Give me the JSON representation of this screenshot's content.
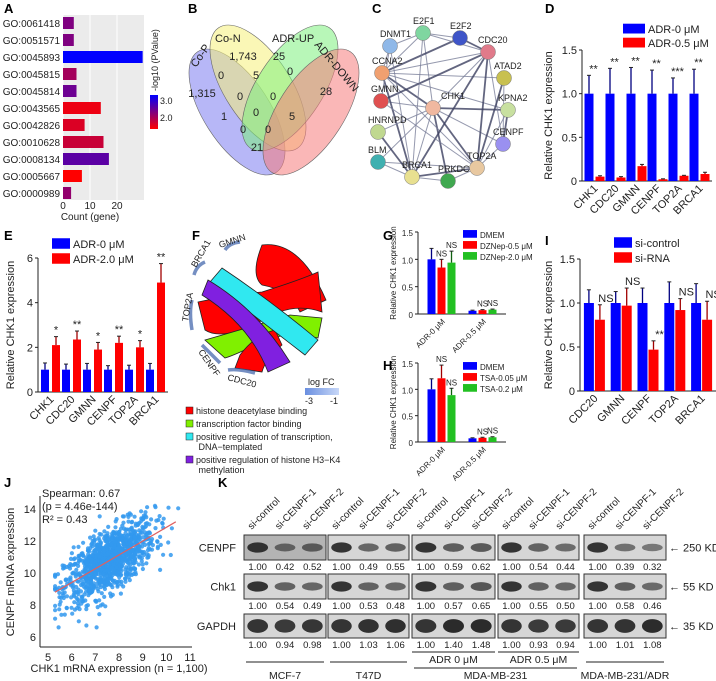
{
  "panel_labels": [
    "A",
    "B",
    "C",
    "D",
    "E",
    "F",
    "G",
    "H",
    "I",
    "J",
    "K"
  ],
  "chart_data": [
    {
      "panel": "A",
      "type": "bar",
      "orientation": "horizontal",
      "categories": [
        "GO:0061418",
        "GO:0051571",
        "GO:0045893",
        "GO:0045815",
        "GO:0045814",
        "GO:0043565",
        "GO:0042826",
        "GO:0010628",
        "GO:0008134",
        "GO:0005667",
        "GO:0000989"
      ],
      "values": [
        4,
        4,
        30,
        5,
        5,
        14,
        8,
        15,
        17,
        7,
        3
      ],
      "neg_log10_pvalue": [
        2.6,
        2.6,
        3.3,
        2.4,
        2.7,
        2.0,
        2.1,
        2.2,
        2.8,
        1.9,
        2.5
      ],
      "xlabel": "Count (gene)",
      "xticks": [
        "0",
        "10",
        "20"
      ],
      "xlim": [
        0,
        30
      ],
      "colorbar": {
        "title": "-log10 (PValue)",
        "ticks": [
          "3.0",
          "2.0"
        ],
        "low_color": "#ff0000",
        "high_color": "#0000ff"
      },
      "grid": true,
      "background": "#ebebeb"
    },
    {
      "panel": "B",
      "type": "venn",
      "sets": [
        {
          "name": "Co-P",
          "color": "#7b7bf0"
        },
        {
          "name": "Co-N",
          "color": "#f5f07a"
        },
        {
          "name": "ADR-UP",
          "color": "#7ef07e"
        },
        {
          "name": "ADR-DOWN",
          "color": "#f57b7b"
        }
      ],
      "counts": [
        "1,743",
        "25",
        "1,315",
        "0",
        "5",
        "0",
        "28",
        "0",
        "0",
        "1",
        "0",
        "5",
        "0",
        "0",
        "21"
      ]
    },
    {
      "panel": "C",
      "type": "network",
      "nodes": [
        {
          "id": "E2F1",
          "color": "#7fd6a0"
        },
        {
          "id": "E2F2",
          "color": "#3f55c8"
        },
        {
          "id": "DNMT1",
          "color": "#8fb8e8"
        },
        {
          "id": "CDC20",
          "color": "#e07a8a"
        },
        {
          "id": "CCNA2",
          "color": "#f0a070"
        },
        {
          "id": "ATAD2",
          "color": "#c8c050"
        },
        {
          "id": "GMNN",
          "color": "#e05050"
        },
        {
          "id": "CHK1",
          "color": "#f0b8a0"
        },
        {
          "id": "KPNA2",
          "color": "#c8e0a0"
        },
        {
          "id": "HNRNPD",
          "color": "#c0d890"
        },
        {
          "id": "CENPF",
          "color": "#9a90f0"
        },
        {
          "id": "BLM",
          "color": "#40b0b0"
        },
        {
          "id": "TOP2A",
          "color": "#e8c8a0"
        },
        {
          "id": "BRCA1",
          "color": "#e8e090"
        },
        {
          "id": "PRKDC",
          "color": "#40a850"
        }
      ],
      "edges": [
        [
          "CHK1",
          "CCNA2"
        ],
        [
          "CHK1",
          "CDC20"
        ],
        [
          "CHK1",
          "CENPF"
        ],
        [
          "CHK1",
          "TOP2A"
        ],
        [
          "CHK1",
          "BRCA1"
        ],
        [
          "CHK1",
          "BLM"
        ],
        [
          "CHK1",
          "PRKDC"
        ],
        [
          "CHK1",
          "E2F1"
        ],
        [
          "CHK1",
          "GMNN"
        ],
        [
          "CHK1",
          "KPNA2"
        ],
        [
          "CCNA2",
          "CDC20"
        ],
        [
          "CCNA2",
          "E2F1"
        ],
        [
          "CCNA2",
          "E2F2"
        ],
        [
          "CCNA2",
          "DNMT1"
        ],
        [
          "CCNA2",
          "TOP2A"
        ],
        [
          "CCNA2",
          "BRCA1"
        ],
        [
          "CCNA2",
          "ATAD2"
        ],
        [
          "CCNA2",
          "KPNA2"
        ],
        [
          "CDC20",
          "TOP2A"
        ],
        [
          "CDC20",
          "CENPF"
        ],
        [
          "CDC20",
          "E2F1"
        ],
        [
          "CDC20",
          "BRCA1"
        ],
        [
          "E2F1",
          "E2F2"
        ],
        [
          "E2F1",
          "DNMT1"
        ],
        [
          "E2F2",
          "CDC20"
        ],
        [
          "DNMT1",
          "GMNN"
        ],
        [
          "GMNN",
          "TOP2A"
        ],
        [
          "GMNN",
          "CDC20"
        ],
        [
          "BRCA1",
          "BLM"
        ],
        [
          "BRCA1",
          "PRKDC"
        ],
        [
          "BRCA1",
          "TOP2A"
        ],
        [
          "TOP2A",
          "CENPF"
        ],
        [
          "TOP2A",
          "KPNA2"
        ],
        [
          "ATAD2",
          "TOP2A"
        ],
        [
          "ATAD2",
          "CENPF"
        ],
        [
          "BLM",
          "TOP2A"
        ],
        [
          "HNRNPD",
          "BRCA1"
        ],
        [
          "HNRNPD",
          "CHK1"
        ],
        [
          "PRKDC",
          "TOP2A"
        ],
        [
          "KPNA2",
          "CENPF"
        ],
        [
          "E2F1",
          "BRCA1"
        ],
        [
          "DNMT1",
          "BRCA1"
        ]
      ]
    },
    {
      "panel": "D",
      "type": "bar",
      "categories": [
        "CHK1",
        "CDC20",
        "GMNN",
        "CENPF",
        "TOP2A",
        "BRCA1"
      ],
      "series": [
        {
          "name": "ADR-0 μM",
          "color": "#0000ff",
          "values": [
            1,
            1,
            1,
            1,
            1,
            1
          ],
          "errors": [
            0.21,
            0.29,
            0.3,
            0.27,
            0.18,
            0.28
          ]
        },
        {
          "name": "ADR-0.5 μM",
          "color": "#ff0000",
          "values": [
            0.05,
            0.04,
            0.17,
            0.02,
            0.06,
            0.08
          ],
          "errors": [
            0.01,
            0.01,
            0.02,
            0.005,
            0.005,
            0.02
          ]
        }
      ],
      "significance": [
        "**",
        "**",
        "**",
        "**",
        "***",
        "**"
      ],
      "ylabel": "Relative CHK1 expression",
      "ylim": [
        0,
        1.5
      ],
      "yticks": [
        "0",
        "0.5",
        "1.0",
        "1.5"
      ],
      "legend": "top-right"
    },
    {
      "panel": "E",
      "type": "bar",
      "categories": [
        "CHK1",
        "CDC20",
        "GMNN",
        "CENPF",
        "TOP2A",
        "BRCA1"
      ],
      "series": [
        {
          "name": "ADR-0 μM",
          "color": "#0000ff",
          "values": [
            1,
            1,
            1,
            1,
            1,
            1
          ],
          "errors": [
            0.3,
            0.25,
            0.28,
            0.18,
            0.2,
            0.28
          ]
        },
        {
          "name": "ADR-2.0 μM",
          "color": "#ff0000",
          "values": [
            2.1,
            2.35,
            1.9,
            2.2,
            2.0,
            4.9
          ],
          "errors": [
            0.38,
            0.38,
            0.32,
            0.3,
            0.3,
            0.85
          ]
        }
      ],
      "significance": [
        "*",
        "**",
        "*",
        "**",
        "*",
        "**"
      ],
      "ylabel": "Relative CHK1 expression",
      "ylim": [
        0,
        6
      ],
      "yticks": [
        "0",
        "2",
        "4",
        "6"
      ],
      "legend": "top-left"
    },
    {
      "panel": "F",
      "type": "chord",
      "genes": [
        "GMNN",
        "BRCA1",
        "TOP2A",
        "CENPF",
        "CDC20"
      ],
      "terms": [
        {
          "name": "histone deacetylase binding",
          "color": "#ff0000"
        },
        {
          "name": "transcription factor binding",
          "color": "#80f000"
        },
        {
          "name": "positive regulation of transcription, DNA−templated",
          "color": "#30e8f0"
        },
        {
          "name": "positive regulation of histone H3−K4 methylation",
          "color": "#8020e0"
        }
      ],
      "colorbar": {
        "title": "log FC",
        "ticks": [
          "-3",
          "-1"
        ]
      }
    },
    {
      "panel": "G",
      "type": "bar",
      "categories": [
        "ADR-0 μM",
        "ADR-0.5 μM"
      ],
      "series": [
        {
          "name": "DMEM",
          "color": "#0000ff",
          "values": [
            1.0,
            0.06
          ],
          "errors": [
            0.2,
            0.01
          ]
        },
        {
          "name": "DZNep-0.5 μM",
          "color": "#ff0000",
          "values": [
            0.85,
            0.07
          ],
          "errors": [
            0.15,
            0.01
          ]
        },
        {
          "name": "DZNep-2.0 μM",
          "color": "#22c022",
          "values": [
            0.94,
            0.08
          ],
          "errors": [
            0.21,
            0.01
          ]
        }
      ],
      "significance": [
        [
          "",
          "NS",
          "NS"
        ],
        [
          "",
          "NS",
          "NS"
        ]
      ],
      "ylabel": "Relative CHK1 expression",
      "ylim": [
        0,
        1.5
      ],
      "yticks": [
        "0",
        "0.5",
        "1.0",
        "1.5"
      ],
      "legend": "top-right"
    },
    {
      "panel": "H",
      "type": "bar",
      "categories": [
        "ADR-0 μM",
        "ADR-0.5 μM"
      ],
      "series": [
        {
          "name": "DMEM",
          "color": "#0000ff",
          "values": [
            1.0,
            0.07
          ],
          "errors": [
            0.2,
            0.01
          ]
        },
        {
          "name": "TSA-0.05 μM",
          "color": "#ff0000",
          "values": [
            1.21,
            0.08
          ],
          "errors": [
            0.25,
            0.01
          ]
        },
        {
          "name": "TSA-0.2 μM",
          "color": "#22c022",
          "values": [
            0.89,
            0.09
          ],
          "errors": [
            0.13,
            0.01
          ]
        }
      ],
      "significance": [
        [
          "",
          "NS",
          "NS"
        ],
        [
          "",
          "NS",
          "NS"
        ]
      ],
      "ylabel": "Relative CHK1 expression",
      "ylim": [
        0,
        1.5
      ],
      "yticks": [
        "0",
        "0.5",
        "1.0",
        "1.5"
      ],
      "legend": "top-right"
    },
    {
      "panel": "I",
      "type": "bar",
      "categories": [
        "CDC20",
        "GMNN",
        "CENPF",
        "TOP2A",
        "BRCA1"
      ],
      "series": [
        {
          "name": "si-control",
          "color": "#0000ff",
          "values": [
            1,
            1,
            1,
            1,
            1
          ],
          "errors": [
            0.15,
            0.13,
            0.17,
            0.24,
            0.22
          ]
        },
        {
          "name": "si-RNA",
          "color": "#ff0000",
          "values": [
            0.81,
            0.97,
            0.47,
            0.92,
            0.81
          ],
          "errors": [
            0.17,
            0.2,
            0.1,
            0.13,
            0.21
          ]
        }
      ],
      "significance": [
        "NS",
        "NS",
        "**",
        "NS",
        "NS"
      ],
      "ylabel": "Relative CHK1 expression",
      "ylim": [
        0,
        1.5
      ],
      "yticks": [
        "0",
        "0.5",
        "1.0",
        "1.5"
      ],
      "legend": "top"
    },
    {
      "panel": "J",
      "type": "scatter",
      "xlabel": "CHK1 mRNA expression (n = 1,100)",
      "ylabel": "CENPF mRNA expression",
      "xlim": [
        5,
        11
      ],
      "ylim": [
        6,
        14.8
      ],
      "xticks": [
        "5",
        "6",
        "7",
        "8",
        "9",
        "10",
        "11"
      ],
      "yticks": [
        "6",
        "8",
        "10",
        "12",
        "14"
      ],
      "n": 1100,
      "point_color": "#3399ee",
      "line_color": "#e06060",
      "fit_line": [
        [
          5.3,
          8.8
        ],
        [
          10.4,
          13.2
        ]
      ],
      "annotations": [
        "Spearman: 0.67",
        "(p = 4.46e-144)",
        "R² = 0.43"
      ]
    },
    {
      "panel": "K",
      "type": "table",
      "subtype": "western-blot",
      "lanes": [
        "si-control",
        "si-CENPF-1",
        "si-CENPF-2"
      ],
      "rows": [
        {
          "protein": "CENPF",
          "marker": "← 250 KD"
        },
        {
          "protein": "Chk1",
          "marker": "← 55 KD"
        },
        {
          "protein": "GAPDH",
          "marker": "← 35 KD"
        }
      ],
      "blocks": [
        {
          "cell_line": "MCF-7",
          "condition": "",
          "values": [
            [
              "1.00",
              "0.42",
              "0.52"
            ],
            [
              "1.00",
              "0.54",
              "0.49"
            ],
            [
              "1.00",
              "0.94",
              "0.98"
            ]
          ]
        },
        {
          "cell_line": "T47D",
          "condition": "",
          "values": [
            [
              "1.00",
              "0.49",
              "0.55"
            ],
            [
              "1.00",
              "0.53",
              "0.48"
            ],
            [
              "1.00",
              "1.03",
              "1.06"
            ]
          ]
        },
        {
          "cell_line": "MDA-MB-231",
          "condition": "ADR 0 μM",
          "values": [
            [
              "1.00",
              "0.59",
              "0.62"
            ],
            [
              "1.00",
              "0.57",
              "0.65"
            ],
            [
              "1.00",
              "1.40",
              "1.48"
            ]
          ]
        },
        {
          "cell_line": "",
          "condition": "ADR 0.5 μM",
          "values": [
            [
              "1.00",
              "0.54",
              "0.44"
            ],
            [
              "1.00",
              "0.55",
              "0.50"
            ],
            [
              "1.00",
              "0.93",
              "0.94"
            ]
          ]
        },
        {
          "cell_line": "MDA-MB-231/ADR",
          "condition": "",
          "values": [
            [
              "1.00",
              "0.39",
              "0.32"
            ],
            [
              "1.00",
              "0.58",
              "0.46"
            ],
            [
              "1.00",
              "1.01",
              "1.08"
            ]
          ]
        }
      ]
    }
  ]
}
